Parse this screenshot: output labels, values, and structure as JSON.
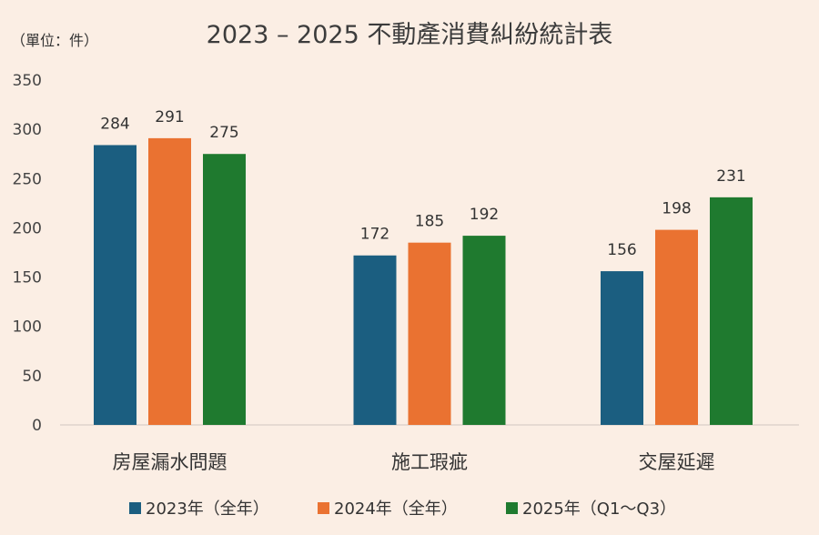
{
  "chart_data": {
    "type": "bar",
    "title": "2023 – 2025 不動產消費糾紛統計表",
    "unit_label": "（單位：件）",
    "categories": [
      "房屋漏水問題",
      "施工瑕疵",
      "交屋延遲"
    ],
    "series": [
      {
        "name": "2023年（全年）",
        "color": "#1b5e80",
        "values": [
          284,
          172,
          156
        ]
      },
      {
        "name": "2024年（全年）",
        "color": "#ea7231",
        "values": [
          291,
          185,
          198
        ]
      },
      {
        "name": "2025年（Q1～Q3）",
        "color": "#1f7a2f",
        "values": [
          275,
          192,
          231
        ]
      }
    ],
    "yticks": [
      0,
      50,
      100,
      150,
      200,
      250,
      300,
      350
    ],
    "ylim": [
      0,
      350
    ],
    "xlabel": "",
    "ylabel": "",
    "grid": false,
    "legend_position": "bottom"
  }
}
